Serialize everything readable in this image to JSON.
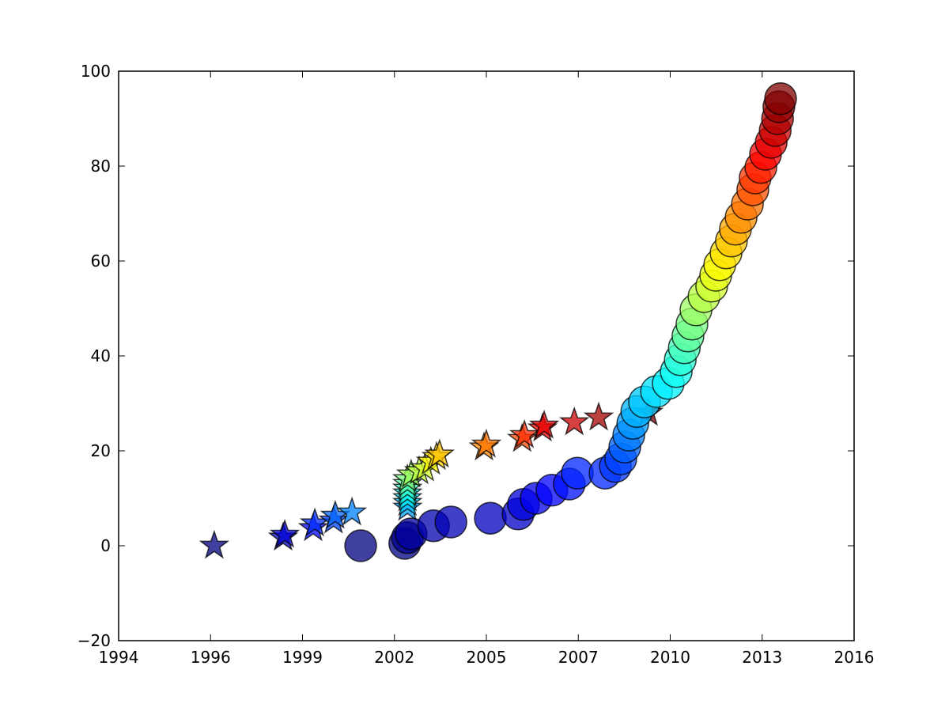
{
  "chart_data": {
    "type": "scatter",
    "xlim": [
      1994,
      2016
    ],
    "xticks": [
      {
        "value": 1994,
        "label": "1994"
      },
      {
        "value": 1996.75,
        "label": "1996"
      },
      {
        "value": 1999.5,
        "label": "1999"
      },
      {
        "value": 2002.25,
        "label": "2002"
      },
      {
        "value": 2005,
        "label": "2005"
      },
      {
        "value": 2007.75,
        "label": "2007"
      },
      {
        "value": 2010.5,
        "label": "2010"
      },
      {
        "value": 2013.25,
        "label": "2013"
      },
      {
        "value": 2016,
        "label": "2016"
      }
    ],
    "ylim": [
      -20,
      100
    ],
    "yticks": [
      {
        "value": -20,
        "label": "−20"
      },
      0,
      20,
      40,
      60,
      80,
      100
    ],
    "colormap": "jet",
    "grid": false,
    "series": [
      {
        "marker": "star",
        "x": [
          1996.86,
          1998.92,
          1998.97,
          1999.82,
          1999.87,
          2000.43,
          2000.48,
          2000.98,
          2002.64,
          2002.64,
          2002.64,
          2002.64,
          2002.64,
          2002.64,
          2002.64,
          2002.75,
          2002.99,
          2003.16,
          2003.34,
          2003.51,
          2003.6,
          2004.93,
          2005.0,
          2006.07,
          2006.14,
          2006.68,
          2006.73,
          2007.63,
          2008.36,
          2009.85
        ],
        "values": [
          0,
          1.7,
          2.3,
          3.7,
          4.7,
          5.3,
          6.3,
          7,
          8,
          9,
          10,
          11,
          12,
          13,
          14,
          15,
          15.7,
          16.3,
          17.7,
          18.7,
          19.2,
          20.7,
          21.3,
          22.5,
          23.3,
          24.7,
          25.3,
          26,
          27,
          28
        ]
      },
      {
        "marker": "circle",
        "x": [
          2001.24,
          2002.56,
          2002.64,
          2002.75,
          2003.42,
          2003.94,
          2005.12,
          2005.95,
          2006.11,
          2006.49,
          2006.96,
          2007.48,
          2007.72,
          2008.55,
          2008.86,
          2009.02,
          2009.14,
          2009.26,
          2009.38,
          2009.5,
          2009.73,
          2010.09,
          2010.44,
          2010.68,
          2010.8,
          2010.92,
          2011.03,
          2011.15,
          2011.27,
          2011.51,
          2011.74,
          2011.86,
          2011.98,
          2012.17,
          2012.33,
          2012.45,
          2012.62,
          2012.81,
          2012.97,
          2013.04,
          2013.21,
          2013.35,
          2013.52,
          2013.64,
          2013.71,
          2013.75,
          2013.8
        ],
        "values": [
          0,
          0.5,
          1.7,
          2.5,
          4.2,
          5,
          5.8,
          6.7,
          8.7,
          10,
          11.7,
          13,
          15.3,
          15.3,
          16.7,
          18.3,
          20.8,
          23.3,
          25.8,
          28.3,
          30.3,
          32.5,
          34.2,
          36.7,
          39.2,
          41.7,
          44.2,
          46.7,
          49.7,
          52.5,
          54.7,
          57,
          59.2,
          61.7,
          64.2,
          66.7,
          69.2,
          72,
          75,
          77.5,
          79.7,
          82.5,
          85,
          87.5,
          90,
          92.5,
          94.2
        ]
      }
    ]
  }
}
